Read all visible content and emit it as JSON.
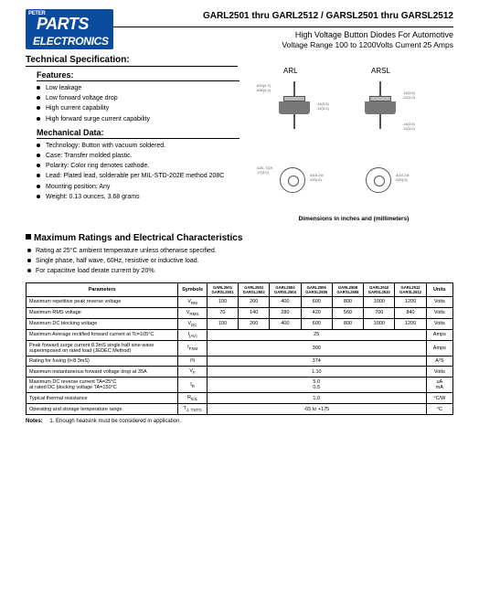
{
  "logo": {
    "peter": "PETER",
    "parts": "PARTS",
    "electronics": "ELECTRONICS"
  },
  "header": {
    "title": "GARL2501 thru GARL2512 / GARSL2501 thru GARSL2512",
    "subtitle1": "High Voltage Button Diodes For Automotive",
    "subtitle2": "Voltage Range 100 to 1200Volts    Current 25 Amps"
  },
  "section_tech": "Technical Specification:",
  "section_features": "Features:",
  "features": [
    "Low leakage",
    "Low forward voltage drop",
    "High current capability",
    "High forward surge current capability"
  ],
  "section_mech": "Mechanical Data:",
  "mechanical": [
    "Technology: Button with vacuum soldered.",
    "Case: Transfer molded plastic.",
    "Polarity: Color ring denotes cathode.",
    "Lead: Plated lead, solderable per MIL-STD-202E method 208C",
    "Mounting position: Any",
    "Weight: 0.13 ounces, 3.68 grams"
  ],
  "drawing": {
    "label_arl": "ARL",
    "label_arsl": "ARSL",
    "caption": "Dimensions in inches and (millimeters)"
  },
  "section_max": "Maximum Ratings and Electrical Characteristics",
  "max_notes": [
    "Rating at 25°C ambient temperature unless otherwise specified.",
    "Single phase, half wave, 60Hz, resistive or inductive load.",
    "For capacitive load derate current by 20%."
  ],
  "table": {
    "head": {
      "parameters": "Parameters",
      "symbols": "Symbols",
      "cols": [
        "GARL2501\nGARSL2501",
        "GARL2502\nGARSL2502",
        "GARL2504\nGARSL2504",
        "GARL2506\nGARSL2506",
        "GARL2508\nGARSL2508",
        "GARL2510\nGARSL2510",
        "GARL2512\nGARSL2512"
      ],
      "units": "Units"
    },
    "rows": [
      {
        "param": "Maximum repetitive peak reverse voltage",
        "sym": "V",
        "sub": "RM",
        "vals": [
          "100",
          "200",
          "400",
          "600",
          "800",
          "1000",
          "1200"
        ],
        "units": "Volts"
      },
      {
        "param": "Maximum RMS voltage",
        "sym": "V",
        "sub": "RMS",
        "vals": [
          "70",
          "140",
          "280",
          "420",
          "560",
          "700",
          "840"
        ],
        "units": "Volts"
      },
      {
        "param": "Maximum DC blocking voltage",
        "sym": "V",
        "sub": "DC",
        "vals": [
          "100",
          "200",
          "400",
          "600",
          "800",
          "1000",
          "1200"
        ],
        "units": "Volts"
      },
      {
        "param": "Maximum Average rectified forward current at Tc=105°C",
        "sym": "I",
        "sub": "(AV)",
        "span": "25",
        "units": "Amps"
      },
      {
        "param": "Peak forward surge current 8.3mS single half sine-wave superimposed on rated load (JEDEC Method)",
        "sym": "I",
        "sub": "FSM",
        "span": "300",
        "units": "Amps"
      },
      {
        "param": "Rating for fusing (t<8.3mS)",
        "sym": "I²t",
        "sub": "",
        "span": "374",
        "units": "A²S"
      },
      {
        "param": "Maximum instantaneous forward voltage drop at 35A",
        "sym": "V",
        "sub": "F",
        "span": "1.10",
        "units": "Volts"
      },
      {
        "param": "Maximum DC reverse current          TA=25°C\nat rated DC blocking voltage        TA=150°C",
        "sym": "I",
        "sub": "R",
        "span": "5.0\n0.5",
        "units": "uA\nmA"
      },
      {
        "param": "Typical thermal resistance",
        "sym": "R",
        "sub": "θJL",
        "span": "1.0",
        "units": "°C/W"
      },
      {
        "param": "Operating and storage temperature range",
        "sym": "T",
        "sub": "J, TSTG",
        "span": "-65 to +175",
        "units": "°C"
      }
    ]
  },
  "notes": {
    "label": "Notes:",
    "text": "1. Enough heatsink must be considered in application."
  }
}
